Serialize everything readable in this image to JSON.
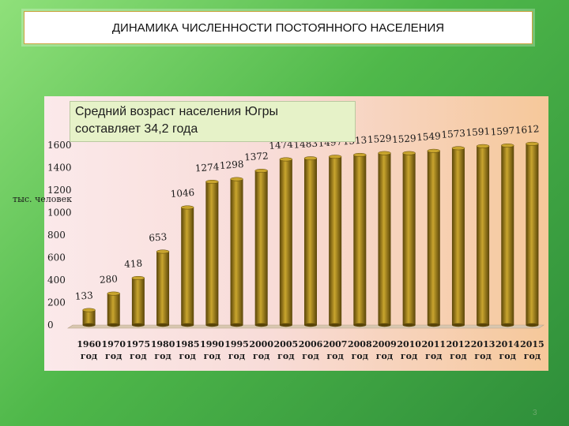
{
  "header": {
    "title": "ДИНАМИКА ЧИСЛЕННОСТИ ПОСТОЯННОГО НАСЕЛЕНИЯ"
  },
  "note": {
    "line1": "Средний возраст населения Югры",
    "line2": "составляет 34,2 года"
  },
  "page_number": "3",
  "chart_data": {
    "type": "bar",
    "title": "",
    "xlabel": "",
    "ylabel": "тыс. человек",
    "ylim": [
      0,
      1600
    ],
    "yticks": [
      0,
      200,
      400,
      600,
      800,
      1000,
      1200,
      1400,
      1600
    ],
    "categories": [
      "1960 год",
      "1970 год",
      "1975 год",
      "1980 год",
      "1985 год",
      "1990 год",
      "1995 год",
      "2000 год",
      "2005 год",
      "2006 год",
      "2007 год",
      "2008 год",
      "2009 год",
      "2010 год",
      "2011 год",
      "2012 год",
      "2013 год",
      "2014 год",
      "2015 год"
    ],
    "category_years": [
      "1960",
      "1970",
      "1975",
      "1980",
      "1985",
      "1990",
      "1995",
      "2000",
      "2005",
      "2006",
      "2007",
      "2008",
      "2009",
      "2010",
      "2011",
      "2012",
      "2013",
      "2014",
      "2015"
    ],
    "category_suffix": "год",
    "values": [
      133,
      280,
      418,
      653,
      1046,
      1274,
      1298,
      1372,
      1474,
      1483,
      1497,
      1513,
      1529,
      1529,
      1549,
      1573,
      1591,
      1597,
      1612
    ],
    "grid": false,
    "legend": "none",
    "colors": {
      "bar": "#8a6d12",
      "bar_light": "#c9a52e",
      "bar_dark": "#5a4508",
      "text": "#1a1a1a"
    }
  }
}
